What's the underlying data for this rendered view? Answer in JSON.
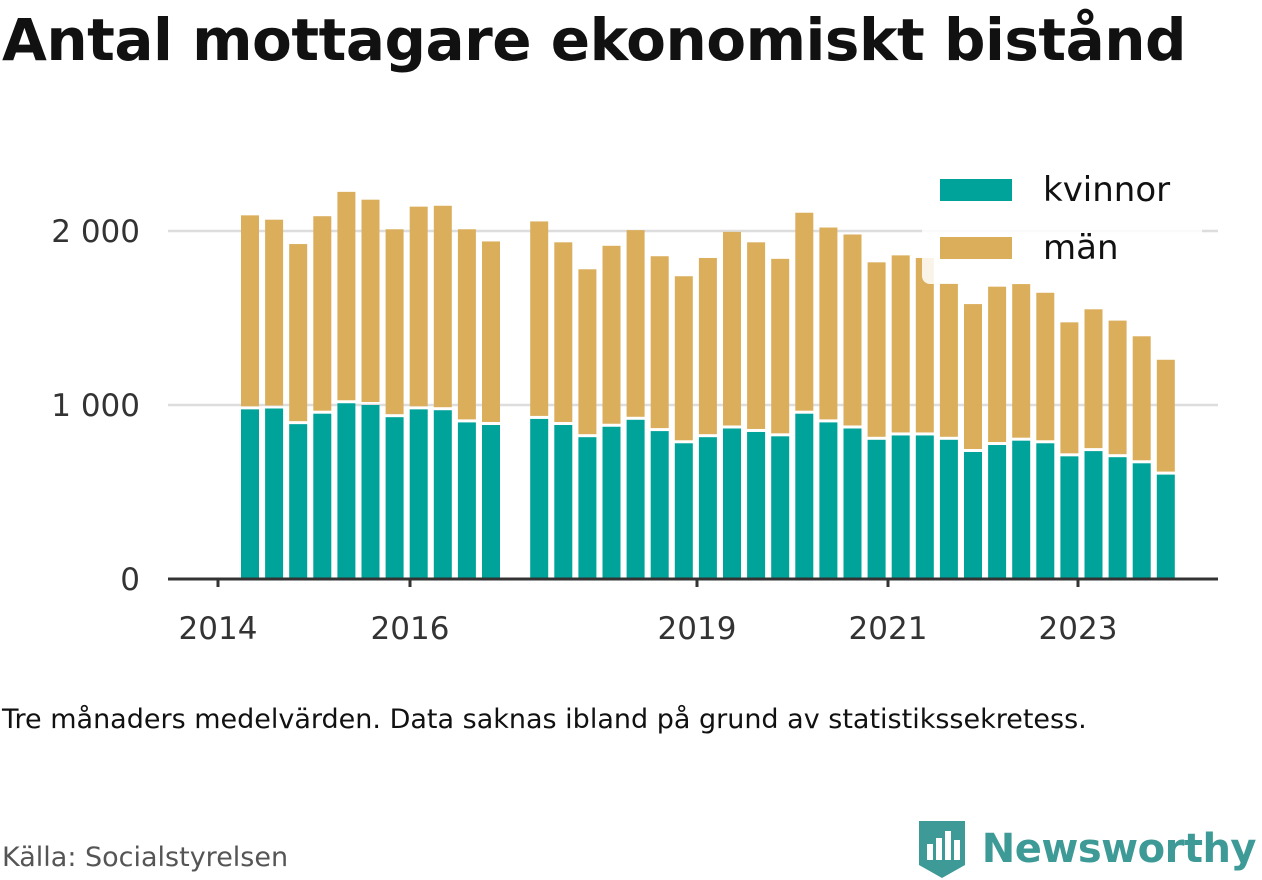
{
  "title": "Antal mottagare ekonomiskt bistånd",
  "note": "Tre månaders medelvärden. Data saknas ibland på grund av statistikssekretess.",
  "source": "Källa: Socialstyrelsen",
  "brand": {
    "name": "Newsworthy",
    "color": "#3d9a96"
  },
  "chart_data": {
    "type": "bar",
    "stacked": true,
    "x_ticks": [
      "2014",
      "2016",
      "2019",
      "2021",
      "2023"
    ],
    "y_ticks": [
      {
        "value": 0,
        "label": "0"
      },
      {
        "value": 1000,
        "label": "1 000"
      },
      {
        "value": 2000,
        "label": "2 000"
      }
    ],
    "ylim": [
      0,
      2300
    ],
    "grid": "horizontal",
    "legend_position": "top-right",
    "series": [
      {
        "name": "kvinnor",
        "color": "#00a39a",
        "values": [
          975,
          980,
          890,
          950,
          1010,
          1000,
          930,
          975,
          970,
          900,
          885,
          null,
          920,
          885,
          815,
          875,
          915,
          850,
          780,
          815,
          865,
          845,
          820,
          950,
          900,
          865,
          800,
          825,
          825,
          800,
          730,
          770,
          795,
          780,
          705,
          735,
          700,
          665,
          600
        ]
      },
      {
        "name": "män",
        "color": "#dbae5c",
        "values": [
          1115,
          1085,
          1035,
          1135,
          1215,
          1180,
          1080,
          1165,
          1175,
          1110,
          1055,
          null,
          1135,
          1050,
          965,
          1040,
          1090,
          1005,
          960,
          1030,
          1130,
          1090,
          1020,
          1155,
          1120,
          1115,
          1020,
          1035,
          1020,
          900,
          850,
          910,
          900,
          865,
          770,
          815,
          785,
          730,
          660
        ]
      }
    ]
  }
}
